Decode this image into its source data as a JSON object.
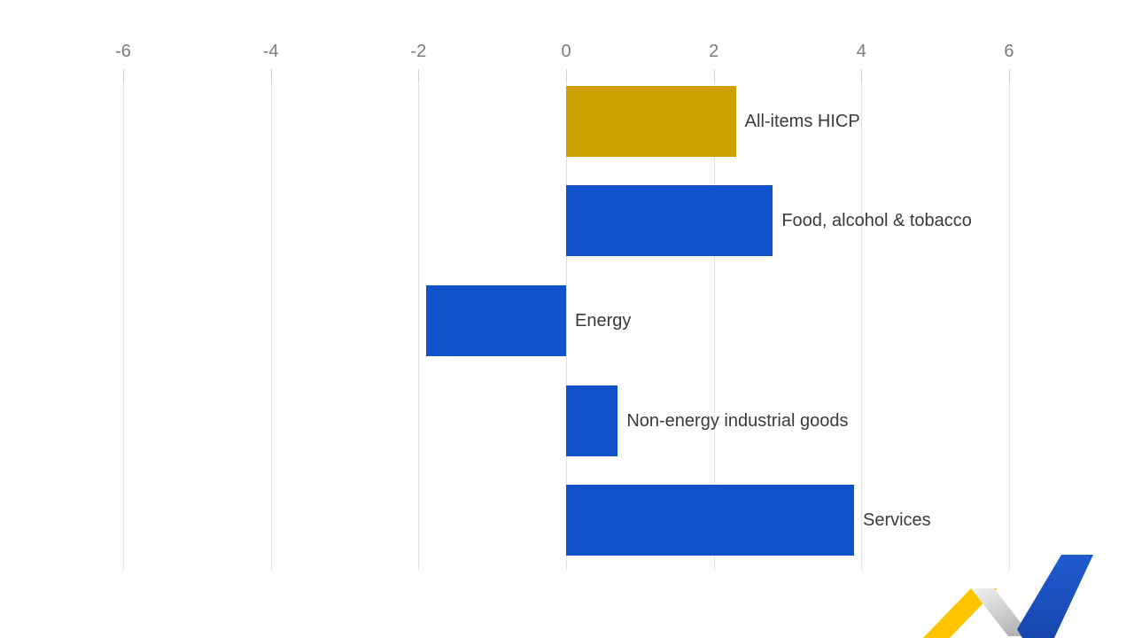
{
  "chart_data": {
    "type": "bar",
    "orientation": "horizontal",
    "title": "",
    "categories": [
      "All-items HICP",
      "Food, alcohol & tobacco",
      "Energy",
      "Non-energy industrial goods",
      "Services"
    ],
    "values": [
      2.3,
      2.8,
      -1.9,
      0.7,
      3.9
    ],
    "bar_colors": [
      "#CCA000",
      "#1152CB",
      "#1152CB",
      "#1152CB",
      "#1152CB"
    ],
    "x_ticks": [
      -6,
      -4,
      -2,
      0,
      2,
      4,
      6
    ],
    "axis_range": [
      -6,
      6
    ],
    "grid": true,
    "legend_position": "none",
    "xlabel": "",
    "ylabel": ""
  },
  "styles": {
    "background": "#FFFFFF",
    "grid_color": "#E4E4E4",
    "tick_text_color": "#7B7B7B",
    "label_text_color": "#3A3A3A",
    "accent_gold": "#CCA000",
    "accent_blue": "#1152CB"
  },
  "logo": {
    "name": "zigzag-check-logo",
    "colors": [
      "#FFC400",
      "#C9C9C9",
      "#1C53C6"
    ]
  }
}
